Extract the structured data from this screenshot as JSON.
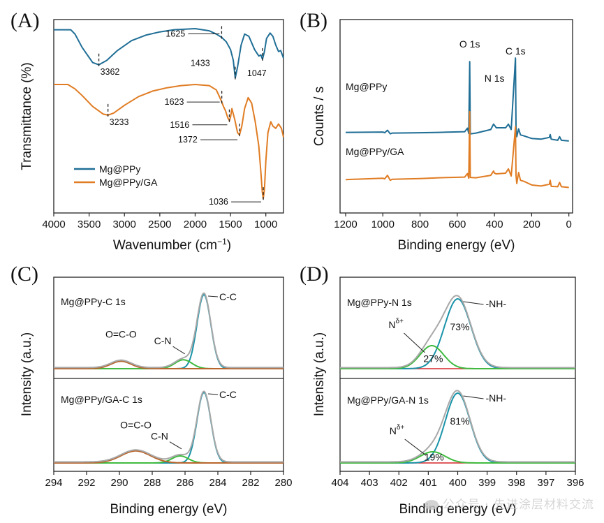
{
  "colors": {
    "blue": "#1f6e96",
    "orange": "#e07c23",
    "gray": "#a8a8a8",
    "green": "#3fba3f",
    "red": "#d62728",
    "brown": "#b8652b",
    "teal": "#1a93a8"
  },
  "watermark": "公众号 · 先进涂层材料交流",
  "chart_data": [
    {
      "panel": "A",
      "type": "line",
      "letter": "(A)",
      "xlabel_main": "Wavenumber (cm",
      "xlabel_sup": "−1",
      "xlabel_end": ")",
      "ylabel": "Transmittance (%)",
      "xlim": [
        4000,
        750
      ],
      "xticks": [
        "4000",
        "3500",
        "3000",
        "2500",
        "2000",
        "1500",
        "1000"
      ],
      "legend": [
        "Mg@PPy",
        "Mg@PPy/GA"
      ],
      "series": [
        {
          "name": "Mg@PPy",
          "color": "blue",
          "points": [
            [
              4000,
              93
            ],
            [
              3760,
              93
            ],
            [
              3700,
              91
            ],
            [
              3600,
              85
            ],
            [
              3450,
              78
            ],
            [
              3362,
              77
            ],
            [
              3250,
              79
            ],
            [
              3100,
              83.5
            ],
            [
              2900,
              88
            ],
            [
              2700,
              90.5
            ],
            [
              2500,
              92
            ],
            [
              2300,
              93
            ],
            [
              2000,
              93.5
            ],
            [
              1800,
              92.5
            ],
            [
              1700,
              91
            ],
            [
              1625,
              89.5
            ],
            [
              1560,
              87.5
            ],
            [
              1500,
              84
            ],
            [
              1460,
              79
            ],
            [
              1433,
              71
            ],
            [
              1400,
              76
            ],
            [
              1350,
              86
            ],
            [
              1300,
              91
            ],
            [
              1240,
              90
            ],
            [
              1160,
              84
            ],
            [
              1100,
              81
            ],
            [
              1070,
              81.5
            ],
            [
              1047,
              79.5
            ],
            [
              1020,
              83
            ],
            [
              990,
              89
            ],
            [
              940,
              91.5
            ],
            [
              900,
              90
            ],
            [
              860,
              86
            ],
            [
              820,
              83
            ],
            [
              790,
              83.5
            ],
            [
              750,
              80
            ]
          ]
        },
        {
          "name": "Mg@PPy/GA",
          "color": "orange",
          "points": [
            [
              4000,
              68
            ],
            [
              3800,
              68
            ],
            [
              3700,
              66
            ],
            [
              3600,
              63
            ],
            [
              3450,
              58
            ],
            [
              3300,
              54.5
            ],
            [
              3233,
              54
            ],
            [
              3150,
              55
            ],
            [
              3000,
              58.5
            ],
            [
              2800,
              62.5
            ],
            [
              2600,
              65
            ],
            [
              2400,
              66.5
            ],
            [
              2200,
              67.5
            ],
            [
              2000,
              68
            ],
            [
              1800,
              67.5
            ],
            [
              1700,
              65.5
            ],
            [
              1650,
              62
            ],
            [
              1623,
              60
            ],
            [
              1600,
              58
            ],
            [
              1570,
              56
            ],
            [
              1540,
              53
            ],
            [
              1516,
              51.5
            ],
            [
              1500,
              53
            ],
            [
              1480,
              57
            ],
            [
              1440,
              52
            ],
            [
              1400,
              46
            ],
            [
              1372,
              45
            ],
            [
              1340,
              49
            ],
            [
              1300,
              57
            ],
            [
              1250,
              62
            ],
            [
              1200,
              59.5
            ],
            [
              1150,
              51
            ],
            [
              1100,
              40
            ],
            [
              1070,
              28
            ],
            [
              1050,
              19
            ],
            [
              1036,
              16
            ],
            [
              1020,
              20
            ],
            [
              1000,
              33
            ],
            [
              970,
              46
            ],
            [
              930,
              51
            ],
            [
              900,
              49
            ],
            [
              860,
              48
            ],
            [
              820,
              50
            ],
            [
              780,
              48
            ],
            [
              750,
              44
            ]
          ]
        }
      ],
      "peaks": [
        {
          "label": "3362",
          "x": 3362,
          "y": 77,
          "dx": 2,
          "dy": 14,
          "style": "tick-below"
        },
        {
          "label": "1625",
          "x": 1625,
          "y": 89.5,
          "dx": -50,
          "dy": -5,
          "style": "arrow-left"
        },
        {
          "label": "1433",
          "x": 1433,
          "y": 71,
          "dx": -52,
          "dy": -14,
          "style": "label-left"
        },
        {
          "label": "1047",
          "x": 1047,
          "y": 79.5,
          "dx": -8,
          "dy": 22,
          "style": "label-below"
        },
        {
          "label": "3233",
          "x": 3233,
          "y": 54,
          "dx": 2,
          "dy": 14,
          "style": "tick-below"
        },
        {
          "label": "1623",
          "x": 1623,
          "y": 60,
          "dx": -52,
          "dy": 0,
          "style": "arrow-left"
        },
        {
          "label": "1516",
          "x": 1516,
          "y": 51.5,
          "dx": -55,
          "dy": 6,
          "style": "arrow-left"
        },
        {
          "label": "1372",
          "x": 1372,
          "y": 45,
          "dx": -58,
          "dy": 7,
          "style": "arrow-left"
        },
        {
          "label": "1036",
          "x": 1036,
          "y": 16,
          "dx": -48,
          "dy": 5,
          "style": "arrow-left"
        }
      ]
    },
    {
      "panel": "B",
      "type": "line",
      "letter": "(B)",
      "xlabel": "Binding energy (eV)",
      "ylabel": "Counts / s",
      "xlim": [
        1230,
        -20
      ],
      "xticks": [
        "1200",
        "1000",
        "800",
        "600",
        "400",
        "200",
        "0"
      ],
      "series": [
        {
          "name": "Mg@PPy",
          "color": "blue",
          "points": [
            [
              1200,
              142
            ],
            [
              1000,
              143
            ],
            [
              990,
              141
            ],
            [
              975,
              148
            ],
            [
              960,
              138
            ],
            [
              950,
              140
            ],
            [
              800,
              141
            ],
            [
              700,
              142
            ],
            [
              560,
              144
            ],
            [
              545,
              154
            ],
            [
              538,
              139
            ],
            [
              533,
              340
            ],
            [
              530,
              138
            ],
            [
              500,
              140
            ],
            [
              420,
              150
            ],
            [
              405,
              165
            ],
            [
              400,
              162
            ],
            [
              390,
              155
            ],
            [
              340,
              155
            ],
            [
              325,
              165
            ],
            [
              310,
              150
            ],
            [
              287,
              350
            ],
            [
              284,
              155
            ],
            [
              280,
              130
            ],
            [
              270,
              152
            ],
            [
              260,
              135
            ],
            [
              240,
              132
            ],
            [
              200,
              125
            ],
            [
              150,
              123
            ],
            [
              105,
              128
            ],
            [
              100,
              136
            ],
            [
              95,
              123
            ],
            [
              60,
              120
            ],
            [
              50,
              130
            ],
            [
              40,
              120
            ],
            [
              0,
              118
            ]
          ]
        },
        {
          "name": "Mg@PPy/GA",
          "color": "orange",
          "points": [
            [
              1200,
              10
            ],
            [
              1000,
              14
            ],
            [
              990,
              12
            ],
            [
              975,
              22
            ],
            [
              960,
              8
            ],
            [
              950,
              11
            ],
            [
              800,
              13
            ],
            [
              700,
              15
            ],
            [
              560,
              17
            ],
            [
              545,
              27
            ],
            [
              538,
              14
            ],
            [
              533,
              200
            ],
            [
              530,
              16
            ],
            [
              500,
              15
            ],
            [
              420,
              22
            ],
            [
              405,
              34
            ],
            [
              400,
              28
            ],
            [
              390,
              26
            ],
            [
              340,
              28
            ],
            [
              325,
              40
            ],
            [
              310,
              20
            ],
            [
              287,
              158
            ],
            [
              284,
              22
            ],
            [
              280,
              -1
            ],
            [
              270,
              30
            ],
            [
              260,
              8
            ],
            [
              240,
              5
            ],
            [
              200,
              -5
            ],
            [
              150,
              -8
            ],
            [
              105,
              -3
            ],
            [
              100,
              8
            ],
            [
              95,
              -9
            ],
            [
              60,
              -10
            ],
            [
              50,
              2
            ],
            [
              40,
              -10
            ],
            [
              0,
              -12
            ]
          ]
        }
      ],
      "labels": [
        {
          "text": "O 1s",
          "x": 533
        },
        {
          "text": "N 1s",
          "x": 400
        },
        {
          "text": "C 1s",
          "x": 287
        }
      ],
      "series_labels": [
        "Mg@PPy",
        "Mg@PPy/GA"
      ]
    },
    {
      "panel": "C",
      "type": "line",
      "letter": "(C)",
      "xlabel": "Binding energy (eV)",
      "ylabel": "Intensity (a.u.)",
      "xlim": [
        294,
        280
      ],
      "xticks": [
        "294",
        "292",
        "290",
        "288",
        "286",
        "284",
        "282",
        "280"
      ],
      "subplots": [
        {
          "title": "Mg@PPy-C 1s",
          "peaks": [
            {
              "name": "C-C",
              "center": 284.85,
              "height": 1.0,
              "sigma": 0.42,
              "color": "teal"
            },
            {
              "name": "C-N",
              "center": 286.1,
              "height": 0.12,
              "sigma": 0.52,
              "color": "green"
            },
            {
              "name": "O=C-O",
              "center": 289.9,
              "height": 0.1,
              "sigma": 0.62,
              "color": "brown"
            }
          ],
          "annotations": [
            "C-C",
            "C-N",
            "O=C-O"
          ]
        },
        {
          "title": "Mg@PPy/GA-C 1s",
          "peaks": [
            {
              "name": "C-C",
              "center": 284.85,
              "height": 1.0,
              "sigma": 0.42,
              "color": "teal"
            },
            {
              "name": "C-N",
              "center": 286.3,
              "height": 0.1,
              "sigma": 0.5,
              "color": "green"
            },
            {
              "name": "O=C-O",
              "center": 289.0,
              "height": 0.17,
              "sigma": 0.9,
              "color": "brown"
            }
          ],
          "annotations": [
            "C-C",
            "C-N",
            "O=C-O"
          ]
        }
      ]
    },
    {
      "panel": "D",
      "type": "line",
      "letter": "(D)",
      "xlabel": "Binding energy (eV)",
      "ylabel": "Intensity (a.u.)",
      "xlim": [
        404,
        396
      ],
      "xticks": [
        "404",
        "403",
        "402",
        "401",
        "400",
        "399",
        "398",
        "397",
        "396"
      ],
      "subplots": [
        {
          "title": "Mg@PPy-N 1s",
          "peaks": [
            {
              "name": "-NH-",
              "center": 400.0,
              "height": 1.0,
              "sigma": 0.45,
              "color": "teal",
              "percent": "73%"
            },
            {
              "name": "N",
              "sup": "δ+",
              "center": 400.88,
              "height": 0.33,
              "sigma": 0.4,
              "color": "green",
              "percent": "27%"
            }
          ]
        },
        {
          "title": "Mg@PPy/GA-N 1s",
          "peaks": [
            {
              "name": "-NH-",
              "center": 400.0,
              "height": 1.0,
              "sigma": 0.42,
              "color": "teal",
              "percent": "81%"
            },
            {
              "name": "N",
              "sup": "δ+",
              "center": 400.85,
              "height": 0.16,
              "sigma": 0.42,
              "color": "green",
              "percent": "19%"
            }
          ]
        }
      ]
    }
  ]
}
